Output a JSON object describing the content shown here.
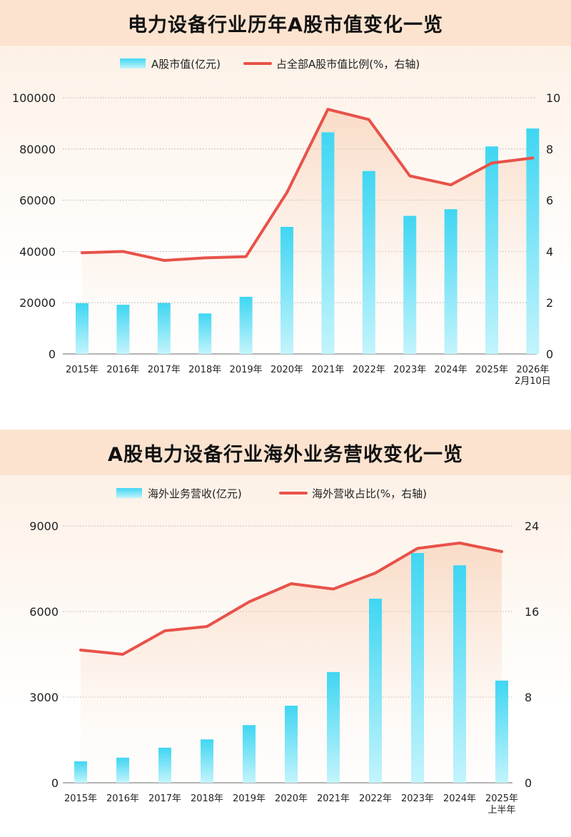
{
  "chart_data": [
    {
      "type": "bar+line",
      "title": "电力设备行业历年A股市值变化一览",
      "legend": {
        "bar": "A股市值(亿元)",
        "line": "占全部A股市值比例(%，右轴)"
      },
      "categories": [
        [
          "2015年"
        ],
        [
          "2016年"
        ],
        [
          "2017年"
        ],
        [
          "2018年"
        ],
        [
          "2019年"
        ],
        [
          "2020年"
        ],
        [
          "2021年"
        ],
        [
          "2022年"
        ],
        [
          "2023年"
        ],
        [
          "2024年"
        ],
        [
          "2025年"
        ],
        [
          "2026年",
          "2月10日"
        ]
      ],
      "bar_values": [
        19800,
        19200,
        19900,
        15800,
        22300,
        49600,
        86500,
        71400,
        53900,
        56500,
        81000,
        88000
      ],
      "line_values": [
        3.95,
        4.0,
        3.65,
        3.75,
        3.8,
        6.3,
        9.55,
        9.15,
        6.95,
        6.6,
        7.45,
        7.65
      ],
      "y_left": {
        "min": 0,
        "max": 100000,
        "ticks": [
          "0",
          "20000",
          "40000",
          "60000",
          "80000",
          "100000"
        ]
      },
      "y_right": {
        "min": 0,
        "max": 10,
        "ticks": [
          "0",
          "2",
          "4",
          "6",
          "8",
          "10"
        ]
      }
    },
    {
      "type": "bar+line",
      "title": "A股电力设备行业海外业务营收变化一览",
      "legend": {
        "bar": "海外业务营收(亿元)",
        "line": "海外营收占比(%，右轴)"
      },
      "categories": [
        [
          "2015年"
        ],
        [
          "2016年"
        ],
        [
          "2017年"
        ],
        [
          "2018年"
        ],
        [
          "2019年"
        ],
        [
          "2020年"
        ],
        [
          "2021年"
        ],
        [
          "2022年"
        ],
        [
          "2023年"
        ],
        [
          "2024年"
        ],
        [
          "2025年",
          "上半年"
        ]
      ],
      "bar_values": [
        750,
        880,
        1230,
        1520,
        2020,
        2700,
        3880,
        6450,
        8050,
        7620,
        3580
      ],
      "line_values": [
        12.4,
        12.0,
        14.2,
        14.6,
        16.9,
        18.6,
        18.1,
        19.6,
        21.9,
        22.4,
        21.6
      ],
      "y_left": {
        "min": 0,
        "max": 9000,
        "ticks": [
          "0",
          "3000",
          "6000",
          "9000"
        ]
      },
      "y_right": {
        "min": 0,
        "max": 24,
        "ticks": [
          "0",
          "8",
          "16",
          "24"
        ]
      }
    }
  ],
  "colors": {
    "bar_top": "#3fd6f2",
    "bar_bottom": "#c3f4fc",
    "line": "#e8524a",
    "title_band": "#fbe3cf"
  }
}
